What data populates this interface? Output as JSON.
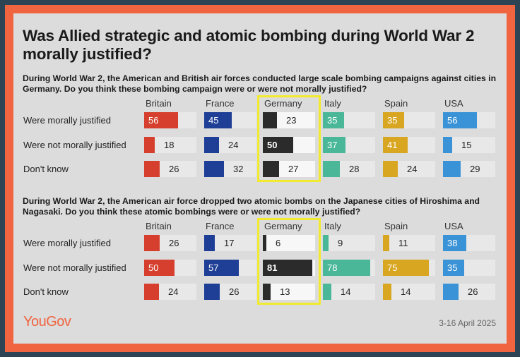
{
  "title": "Was Allied strategic and atomic bombing during World War 2 morally justified?",
  "logo_text": "YouGov",
  "date": "3-16 April 2025",
  "colors": {
    "frame": "#f0643f",
    "Britain": "#d63f2d",
    "France": "#1f3f96",
    "Germany": "#2b2b2b",
    "Italy": "#49b798",
    "Spain": "#d9a621",
    "USA": "#3a93d6",
    "highlight": "#f2ea2e"
  },
  "chart_data": [
    {
      "type": "table",
      "question": "During World War 2, the American and British air forces conducted large scale bombing campaigns against cities in Germany. Do you think these bombing campaign were or were not morally justified?",
      "countries": [
        "Britain",
        "France",
        "Germany",
        "Italy",
        "Spain",
        "USA"
      ],
      "highlighted_country": "Germany",
      "rows": [
        {
          "label": "Were morally justified",
          "values": [
            56,
            45,
            23,
            35,
            35,
            56
          ]
        },
        {
          "label": "Were not morally justified",
          "values": [
            18,
            24,
            50,
            37,
            41,
            15
          ]
        },
        {
          "label": "Don't know",
          "values": [
            26,
            32,
            27,
            28,
            24,
            29
          ]
        }
      ]
    },
    {
      "type": "table",
      "question": "During World War 2, the American air force dropped two atomic bombs on the Japanese cities of Hiroshima and Nagasaki. Do you think these atomic bombings were or were not morally justified?",
      "countries": [
        "Britain",
        "France",
        "Germany",
        "Italy",
        "Spain",
        "USA"
      ],
      "highlighted_country": "Germany",
      "rows": [
        {
          "label": "Were morally justified",
          "values": [
            26,
            17,
            6,
            9,
            11,
            38
          ]
        },
        {
          "label": "Were not morally justified",
          "values": [
            50,
            57,
            81,
            78,
            75,
            35
          ]
        },
        {
          "label": "Don't know",
          "values": [
            24,
            26,
            13,
            14,
            14,
            26
          ]
        }
      ]
    }
  ]
}
